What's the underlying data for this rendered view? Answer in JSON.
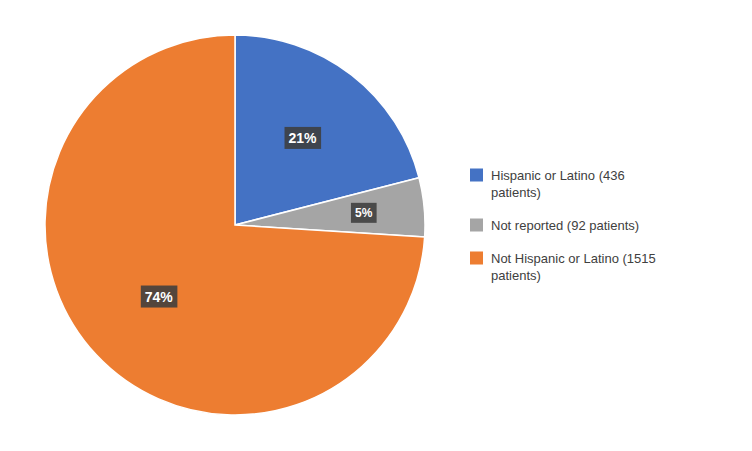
{
  "chart_data": {
    "type": "pie",
    "categories": [
      "Hispanic or Latino (436\npatients)",
      "Not reported (92 patients)",
      "Not Hispanic or Latino (1515\npatients)"
    ],
    "values": [
      21,
      5,
      74
    ],
    "value_labels": [
      "21%",
      "5%",
      "74%"
    ],
    "colors": [
      "#4472C4",
      "#A5A5A5",
      "#ED7D31"
    ],
    "data_labels": true,
    "legend": "right"
  }
}
